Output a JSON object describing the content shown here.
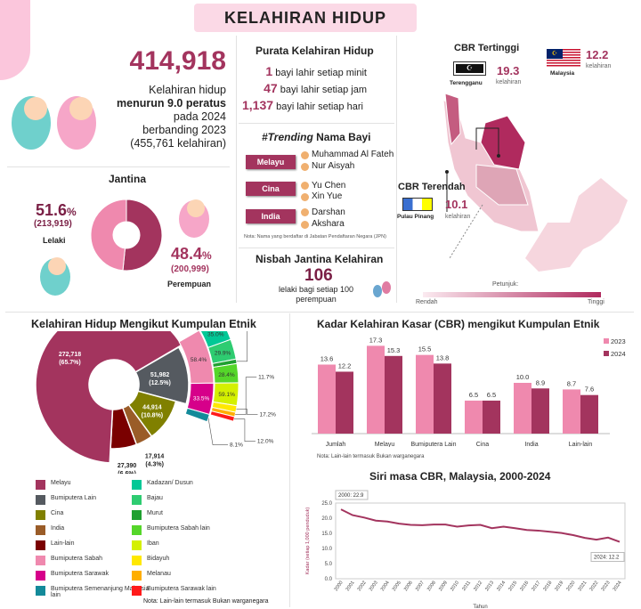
{
  "title": "KELAHIRAN HIDUP",
  "summary": {
    "total": "414,918",
    "line1": "Kelahiran hidup",
    "line2": "menurun 9.0 peratus",
    "line3": "pada 2024",
    "line4": "berbanding 2023",
    "line5": "(455,761 kelahiran)"
  },
  "gender": {
    "title": "Jantina",
    "male_pct": "51.6",
    "male_count": "(213,919)",
    "male_label": "Lelaki",
    "female_pct": "48.4",
    "female_count": "(200,999)",
    "female_label": "Perempuan",
    "pct_sign": "%",
    "values": [
      51.6,
      48.4
    ],
    "colors": [
      "#a3345e",
      "#ef89ae"
    ]
  },
  "average": {
    "title": "Purata Kelahiran Hidup",
    "rows": [
      {
        "n": "1",
        "t": "bayi lahir setiap minit"
      },
      {
        "n": "47",
        "t": "bayi lahir setiap jam"
      },
      {
        "n": "1,137",
        "t": "bayi lahir setiap hari"
      }
    ]
  },
  "trending": {
    "title_italic": "#Trending",
    "title_rest": " Nama Bayi",
    "groups": [
      {
        "label": "Melayu",
        "names": [
          "Muhammad Al Fateh",
          "Nur Aisyah"
        ]
      },
      {
        "label": "Cina",
        "names": [
          "Yu Chen",
          "Xin Yue"
        ]
      },
      {
        "label": "India",
        "names": [
          "Darshan",
          "Akshara"
        ]
      }
    ],
    "note": "Nota: Nama yang berdaftar di Jabatan Pendaftaran Negara (JPN)"
  },
  "sex_ratio": {
    "title": "Nisbah Jantina Kelahiran",
    "value": "106",
    "desc": "lelaki bagi setiap 100 perempuan"
  },
  "map": {
    "highest_title": "CBR Tertinggi",
    "highest_state": "Terengganu",
    "highest_value": "19.3",
    "lowest_title": "CBR Terendah",
    "lowest_state": "Pulau Pinang",
    "lowest_value": "10.1",
    "national_label": "Malaysia",
    "national_value": "12.2",
    "unit": "kelahiran",
    "legend_title": "Petunjuk:",
    "legend_low": "Rendah",
    "legend_high": "Tinggi"
  },
  "chart_data": [
    {
      "type": "pie",
      "title": "Kelahiran Hidup Mengikut Kumpulan Etnik",
      "slices": [
        {
          "name": "Bumiputera Lain",
          "value": 51982,
          "pct": 12.5,
          "label": "51,982",
          "plabel": "(12.5%)",
          "color": "#555a60"
        },
        {
          "name": "Cina",
          "value": 44914,
          "pct": 10.8,
          "label": "44,914",
          "plabel": "(10.8%)",
          "color": "#808000"
        },
        {
          "name": "India",
          "value": 17914,
          "pct": 4.3,
          "label": "17,914",
          "plabel": "(4.3%)",
          "color": "#9a5c28"
        },
        {
          "name": "Lain-lain",
          "value": 27390,
          "pct": 6.6,
          "label": "27,390",
          "plabel": "(6.6%)",
          "color": "#7a0000"
        },
        {
          "name": "Melayu",
          "value": 272718,
          "pct": 65.7,
          "label": "272,718",
          "plabel": "(65.7%)",
          "color": "#a3345e"
        }
      ],
      "sub_bumiputera_lain": [
        {
          "name": "Bumiputera Sabah",
          "pct": 58.4,
          "label": "58.4%",
          "color": "#ef89ae",
          "children": [
            {
              "name": "Kadazan/ Dusun",
              "pct": 35.0,
              "label": "35.0%",
              "color": "#00c896"
            },
            {
              "name": "Bajau",
              "pct": 29.9,
              "label": "29.9%",
              "color": "#2ecc71"
            },
            {
              "name": "Murut",
              "pct": 6.7,
              "label": "6.7%",
              "color": "#1fa030"
            },
            {
              "name": "Bumiputera Sabah lain",
              "pct": 28.4,
              "label": "28.4%",
              "color": "#55d62a"
            }
          ]
        },
        {
          "name": "Bumiputera Sarawak",
          "pct": 33.5,
          "label": "33.5%",
          "color": "#d6008a",
          "children": [
            {
              "name": "Iban",
              "pct": 59.1,
              "label": "59.1%",
              "color": "#d4f000"
            },
            {
              "name": "Bidayuh",
              "pct": 17.2,
              "label": "17.2%",
              "color": "#ffe800"
            },
            {
              "name": "Melanau",
              "pct": 11.7,
              "label": "11.7%",
              "color": "#ffae00"
            },
            {
              "name": "Bumiputera Sarawak lain",
              "pct": 12.0,
              "label": "12.0%",
              "color": "#ff1a1a"
            }
          ]
        },
        {
          "name": "Bumiputera Semenanjung Malaysia lain",
          "pct": 8.1,
          "label": "8.1%",
          "color": "#138a9a",
          "children": []
        }
      ],
      "legend_left": [
        {
          "name": "Melayu",
          "color": "#a3345e"
        },
        {
          "name": "Bumiputera Lain",
          "color": "#555a60"
        },
        {
          "name": "Cina",
          "color": "#808000"
        },
        {
          "name": "India",
          "color": "#9a5c28"
        },
        {
          "name": "Lain-lain",
          "color": "#7a0000"
        },
        {
          "name": "Bumiputera Sabah",
          "color": "#ef89ae"
        },
        {
          "name": "Bumiputera Sarawak",
          "color": "#d6008a"
        },
        {
          "name": "Bumiputera Semenanjung Malaysia lain",
          "color": "#138a9a"
        }
      ],
      "legend_right": [
        {
          "name": "Kadazan/ Dusun",
          "color": "#00c896"
        },
        {
          "name": "Bajau",
          "color": "#2ecc71"
        },
        {
          "name": "Murut",
          "color": "#1fa030"
        },
        {
          "name": "Bumiputera Sabah lain",
          "color": "#55d62a"
        },
        {
          "name": "Iban",
          "color": "#d4f000"
        },
        {
          "name": "Bidayuh",
          "color": "#ffe800"
        },
        {
          "name": "Melanau",
          "color": "#ffae00"
        },
        {
          "name": "Bumiputera Sarawak lain",
          "color": "#ff1a1a"
        }
      ],
      "note": "Nota: Lain-lain termasuk Bukan warganegara"
    },
    {
      "type": "bar",
      "title": "Kadar Kelahiran Kasar (CBR) mengikut Kumpulan Etnik",
      "categories": [
        "Jumlah",
        "Melayu",
        "Bumiputera Lain",
        "Cina",
        "India",
        "Lain-lain"
      ],
      "series": [
        {
          "name": "2023",
          "values": [
            13.6,
            17.3,
            15.5,
            6.5,
            10.0,
            8.7
          ],
          "labels": [
            "13.6",
            "17.3",
            "15.5",
            "6.5",
            "10.0",
            "8.7"
          ],
          "color": "#ef89ae"
        },
        {
          "name": "2024",
          "values": [
            12.2,
            15.3,
            13.8,
            6.5,
            8.9,
            7.6
          ],
          "labels": [
            "12.2",
            "15.3",
            "13.8",
            "6.5",
            "8.9",
            "7.6"
          ],
          "color": "#a3345e"
        }
      ],
      "ylim": [
        0,
        20
      ],
      "legend": "top-right",
      "note": "Nota: Lain-lain termasuk Bukan warganegara"
    },
    {
      "type": "line",
      "title": "Siri masa CBR, Malaysia, 2000-2024",
      "xlabel": "Tahun",
      "ylabel": "Kadar (setiap 1,000 penduduk)",
      "x": [
        "2000",
        "2001",
        "2002",
        "2003",
        "2004",
        "2005",
        "2006",
        "2007",
        "2008",
        "2009",
        "2010",
        "2011",
        "2012",
        "2013",
        "2014",
        "2015",
        "2016",
        "2017",
        "2018",
        "2019",
        "2020",
        "2021",
        "2022",
        "2023",
        "2024"
      ],
      "values": [
        22.9,
        21.0,
        20.2,
        19.2,
        18.9,
        18.2,
        17.8,
        17.7,
        17.9,
        17.9,
        17.2,
        17.6,
        17.8,
        16.7,
        17.2,
        16.7,
        16.1,
        15.9,
        15.5,
        15.1,
        14.4,
        13.5,
        12.9,
        13.6,
        12.2
      ],
      "yticks": [
        "0.0",
        "5.0",
        "10.0",
        "15.0",
        "20.0",
        "25.0"
      ],
      "ylim": [
        0,
        25
      ],
      "annotations": [
        "2000: 22.9",
        "2024: 12.2"
      ],
      "color": "#a3345e"
    }
  ]
}
